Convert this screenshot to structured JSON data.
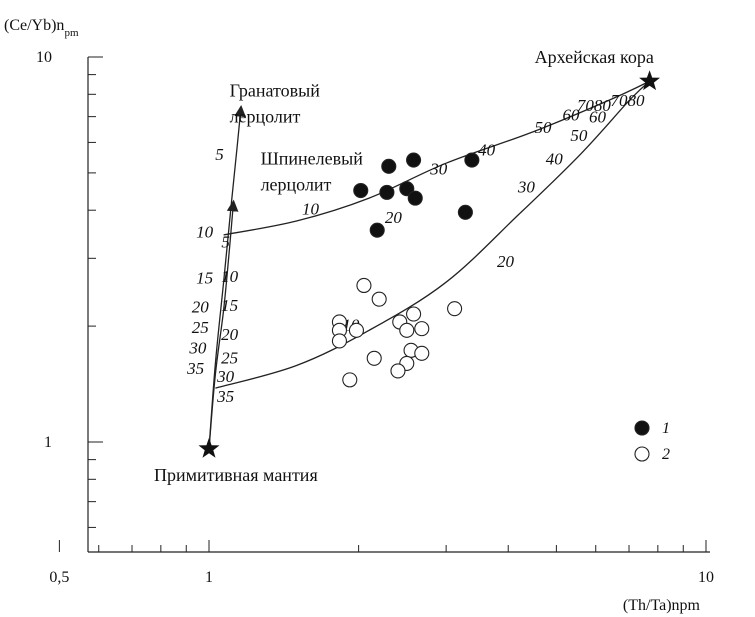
{
  "chart_data": {
    "type": "scatter",
    "title": "",
    "xlabel": "(Th/Ta)npm",
    "ylabel": "(Ce/Yb)n",
    "ylabel_sub": "pm",
    "xscale": "log",
    "yscale": "log",
    "xlim": [
      0.5,
      10
    ],
    "ylim": [
      0.5,
      10
    ],
    "x_ticklabels": [
      {
        "value": 0.5,
        "label": "0,5"
      },
      {
        "value": 1,
        "label": "1"
      },
      {
        "value": 10,
        "label": "10"
      }
    ],
    "y_ticklabels": [
      {
        "value": 1,
        "label": "1"
      },
      {
        "value": 10,
        "label": "10"
      }
    ],
    "grid": false,
    "legend": "right",
    "series": [
      {
        "name": "1",
        "marker": "filled-circle",
        "points": [
          {
            "x": 2.02,
            "y": 4.5
          },
          {
            "x": 2.3,
            "y": 5.2
          },
          {
            "x": 2.28,
            "y": 4.45
          },
          {
            "x": 2.58,
            "y": 5.4
          },
          {
            "x": 2.5,
            "y": 4.55
          },
          {
            "x": 2.6,
            "y": 4.3
          },
          {
            "x": 2.18,
            "y": 3.55
          },
          {
            "x": 3.28,
            "y": 3.95
          },
          {
            "x": 3.38,
            "y": 5.4
          }
        ]
      },
      {
        "name": "2",
        "marker": "open-circle",
        "points": [
          {
            "x": 1.83,
            "y": 2.05
          },
          {
            "x": 1.83,
            "y": 1.95
          },
          {
            "x": 1.83,
            "y": 1.83
          },
          {
            "x": 1.98,
            "y": 1.95
          },
          {
            "x": 2.05,
            "y": 2.55
          },
          {
            "x": 2.2,
            "y": 2.35
          },
          {
            "x": 2.15,
            "y": 1.65
          },
          {
            "x": 1.92,
            "y": 1.45
          },
          {
            "x": 2.42,
            "y": 2.05
          },
          {
            "x": 2.5,
            "y": 1.95
          },
          {
            "x": 2.58,
            "y": 2.15
          },
          {
            "x": 2.68,
            "y": 1.97
          },
          {
            "x": 2.55,
            "y": 1.73
          },
          {
            "x": 2.68,
            "y": 1.7
          },
          {
            "x": 2.5,
            "y": 1.6
          },
          {
            "x": 2.4,
            "y": 1.53
          },
          {
            "x": 3.12,
            "y": 2.22
          }
        ]
      }
    ],
    "endmembers": [
      {
        "label": "Примитивная мантия",
        "x": 1,
        "y": 0.96,
        "marker": "star"
      },
      {
        "label": "Архейская кора",
        "x": 7.7,
        "y": 8.65,
        "marker": "star"
      }
    ],
    "mixing_curves": [
      {
        "name": "garnet-lherzolite-melting",
        "x": [
          1,
          1.03,
          1.07,
          1.11,
          1.14,
          1.16
        ],
        "y": [
          0.96,
          1.6,
          2.6,
          4.2,
          5.9,
          7.4
        ],
        "arrow": true
      },
      {
        "name": "spinel-lherzolite-melting",
        "x": [
          1,
          1.03,
          1.07,
          1.1,
          1.12
        ],
        "y": [
          0.96,
          1.5,
          2.2,
          3.2,
          4.2
        ],
        "arrow": true
      },
      {
        "name": "mixing-spinel-crust",
        "x": [
          1.07,
          1.5,
          2.1,
          3.0,
          4.5,
          6.5,
          7.7
        ],
        "y": [
          3.45,
          3.75,
          4.3,
          5.3,
          6.4,
          7.8,
          8.65
        ],
        "arrow": false
      },
      {
        "name": "mixing-garnet-crust",
        "x": [
          1.03,
          1.5,
          2.1,
          3.0,
          4.2,
          5.6,
          7.0,
          7.7
        ],
        "y": [
          1.38,
          1.58,
          1.95,
          2.6,
          3.9,
          5.6,
          7.7,
          8.65
        ],
        "arrow": false
      }
    ],
    "annotations": [
      {
        "text": "Гранатовый",
        "x": 1.1,
        "y": 7.9
      },
      {
        "text": "лерцолит",
        "x": 1.1,
        "y": 6.75
      },
      {
        "text": "Шпинелевый",
        "x": 1.27,
        "y": 5.25
      },
      {
        "text": "лерцолит",
        "x": 1.27,
        "y": 4.5
      }
    ],
    "curve_labels": [
      {
        "text": "5",
        "x": 1.05,
        "y": 5.4
      },
      {
        "text": "10",
        "x": 0.98,
        "y": 3.4
      },
      {
        "text": "15",
        "x": 0.98,
        "y": 2.58
      },
      {
        "text": "20",
        "x": 0.96,
        "y": 2.17
      },
      {
        "text": "25",
        "x": 0.96,
        "y": 1.92
      },
      {
        "text": "30",
        "x": 0.95,
        "y": 1.7
      },
      {
        "text": "35",
        "x": 0.94,
        "y": 1.5
      },
      {
        "text": "5",
        "x": 1.08,
        "y": 3.2
      },
      {
        "text": "10",
        "x": 1.1,
        "y": 2.6
      },
      {
        "text": "15",
        "x": 1.1,
        "y": 2.19
      },
      {
        "text": "20",
        "x": 1.1,
        "y": 1.84
      },
      {
        "text": "25",
        "x": 1.1,
        "y": 1.6
      },
      {
        "text": "30",
        "x": 1.08,
        "y": 1.43
      },
      {
        "text": "35",
        "x": 1.08,
        "y": 1.27
      },
      {
        "text": "10",
        "x": 1.6,
        "y": 3.9
      },
      {
        "text": "20",
        "x": 2.35,
        "y": 3.7
      },
      {
        "text": "30",
        "x": 2.9,
        "y": 4.95
      },
      {
        "text": "40",
        "x": 3.62,
        "y": 5.55
      },
      {
        "text": "50",
        "x": 4.7,
        "y": 6.35
      },
      {
        "text": "60",
        "x": 5.35,
        "y": 6.85
      },
      {
        "text": "7080",
        "x": 5.95,
        "y": 7.25
      },
      {
        "text": "10",
        "x": 1.93,
        "y": 1.95
      },
      {
        "text": "20",
        "x": 3.95,
        "y": 2.85
      },
      {
        "text": "30",
        "x": 4.35,
        "y": 4.45
      },
      {
        "text": "40",
        "x": 4.95,
        "y": 5.25
      },
      {
        "text": "50",
        "x": 5.55,
        "y": 6.05
      },
      {
        "text": "60",
        "x": 6.05,
        "y": 6.75
      },
      {
        "text": "7080",
        "x": 6.95,
        "y": 7.45
      }
    ]
  }
}
